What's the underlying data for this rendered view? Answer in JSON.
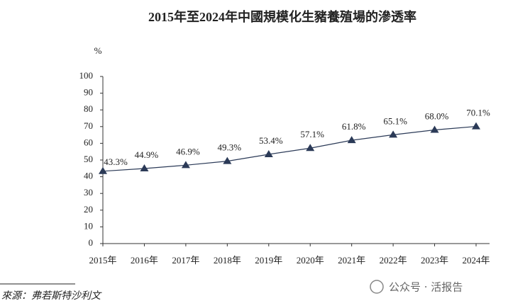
{
  "chart_data": {
    "type": "line",
    "title": "2015年至2024年中國規模化生豬養殖場的滲透率",
    "y_label": "%",
    "categories": [
      "2015年",
      "2016年",
      "2017年",
      "2018年",
      "2019年",
      "2020年",
      "2021年",
      "2022年",
      "2023年",
      "2024年"
    ],
    "series": [
      {
        "name": "滲透率",
        "color": "#2b3a57",
        "values": [
          43.3,
          44.9,
          46.9,
          49.3,
          53.4,
          57.1,
          61.8,
          65.1,
          68.0,
          70.1
        ],
        "value_labels": [
          "43.3%",
          "44.9%",
          "46.9%",
          "49.3%",
          "53.4%",
          "57.1%",
          "61.8%",
          "65.1%",
          "68.0%",
          "70.1%"
        ]
      }
    ],
    "ylim": [
      0,
      100
    ],
    "yticks": [
      0,
      10,
      20,
      30,
      40,
      50,
      60,
      70,
      80,
      90,
      100
    ],
    "source": "來源：弗若斯特沙利文",
    "watermark": "公众号 · 活报告"
  }
}
